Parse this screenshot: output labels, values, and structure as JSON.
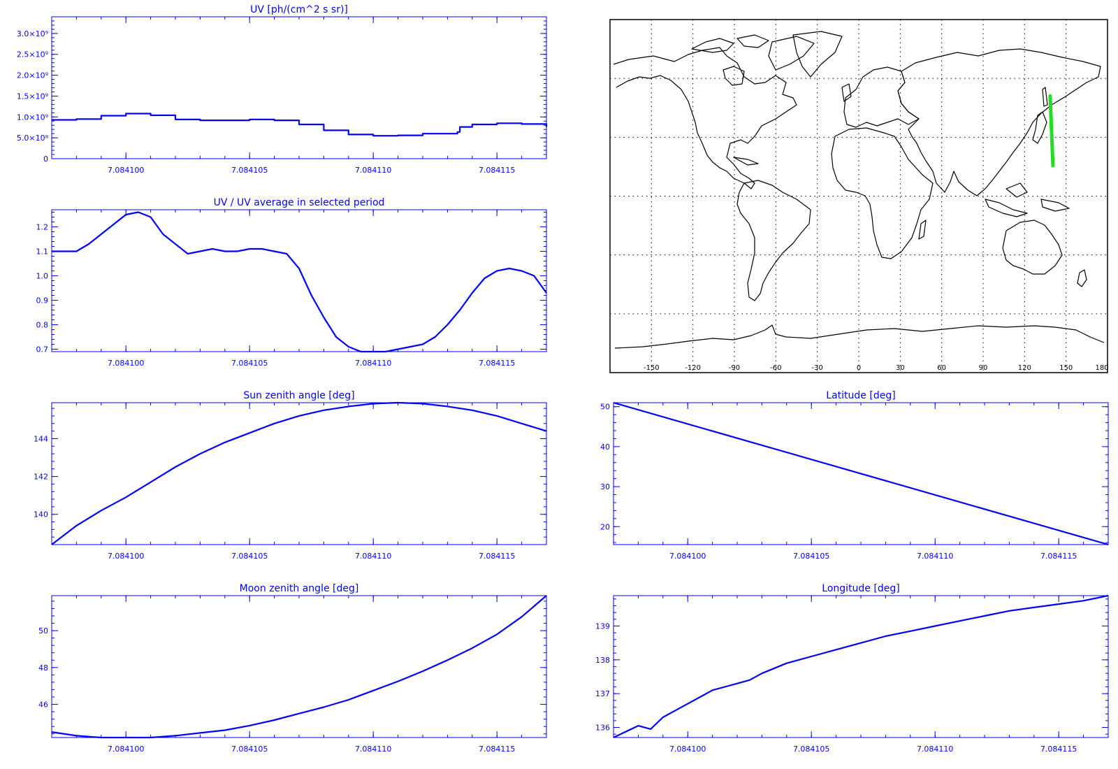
{
  "colors": {
    "plot": "#0000ff",
    "map_frame": "#000000",
    "track": "#22dd22",
    "grid": "#000000"
  },
  "chart_data": [
    {
      "type": "line",
      "title": "UV [ph/(cm^2 s sr)]",
      "xlim": [
        7.084097,
        7.084117
      ],
      "x_ticks": [
        "7.084100",
        "7.084105",
        "7.084110",
        "7.084115"
      ],
      "x_tick_values": [
        7.0841,
        7.084105,
        7.08411,
        7.084115
      ],
      "ylim": [
        0,
        3400000000
      ],
      "y_ticks": [
        "0",
        "5.0×10⁸",
        "1.0×10⁹",
        "1.5×10⁹",
        "2.0×10⁹",
        "2.5×10⁹",
        "3.0×10⁹"
      ],
      "y_tick_values": [
        0,
        500000000,
        1000000000,
        1500000000,
        2000000000,
        2500000000,
        3000000000
      ],
      "x": [
        7.084097,
        7.084098,
        7.084099,
        7.0841,
        7.084101,
        7.084102,
        7.084103,
        7.084104,
        7.084105,
        7.084106,
        7.084107,
        7.084108,
        7.084109,
        7.08411,
        7.084111,
        7.084112,
        7.0841134,
        7.0841135,
        7.084114,
        7.084115,
        7.084116,
        7.084117
      ],
      "y": [
        930000000,
        950000000,
        1030000000,
        1080000000,
        1040000000,
        940000000,
        920000000,
        920000000,
        940000000,
        920000000,
        820000000,
        680000000,
        580000000,
        550000000,
        560000000,
        600000000,
        640000000,
        760000000,
        820000000,
        850000000,
        830000000,
        760000000
      ]
    },
    {
      "type": "line",
      "title": "UV / UV average in selected period",
      "xlim": [
        7.084097,
        7.084117
      ],
      "x_ticks": [
        "7.084100",
        "7.084105",
        "7.084110",
        "7.084115"
      ],
      "x_tick_values": [
        7.0841,
        7.084105,
        7.08411,
        7.084115
      ],
      "ylim": [
        0.69,
        1.27
      ],
      "y_ticks": [
        "0.7",
        "0.8",
        "0.9",
        "1.0",
        "1.1",
        "1.2"
      ],
      "y_tick_values": [
        0.7,
        0.8,
        0.9,
        1.0,
        1.1,
        1.2
      ],
      "x": [
        7.084097,
        7.084098,
        7.0840985,
        7.084099,
        7.0840995,
        7.0841,
        7.0841005,
        7.084101,
        7.0841015,
        7.084102,
        7.0841025,
        7.084103,
        7.0841035,
        7.084104,
        7.0841045,
        7.084105,
        7.0841055,
        7.084106,
        7.0841065,
        7.084107,
        7.0841075,
        7.084108,
        7.0841085,
        7.084109,
        7.0841095,
        7.08411,
        7.0841105,
        7.084111,
        7.0841115,
        7.084112,
        7.0841125,
        7.084113,
        7.0841135,
        7.084114,
        7.0841145,
        7.084115,
        7.0841155,
        7.084116,
        7.0841165,
        7.084117
      ],
      "y": [
        1.1,
        1.1,
        1.13,
        1.17,
        1.21,
        1.25,
        1.26,
        1.24,
        1.17,
        1.13,
        1.09,
        1.1,
        1.11,
        1.1,
        1.1,
        1.11,
        1.11,
        1.1,
        1.09,
        1.03,
        0.92,
        0.83,
        0.75,
        0.71,
        0.69,
        0.69,
        0.69,
        0.7,
        0.71,
        0.72,
        0.75,
        0.8,
        0.86,
        0.93,
        0.99,
        1.02,
        1.03,
        1.02,
        1.0,
        0.93
      ]
    },
    {
      "type": "line",
      "title": "Sun zenith angle [deg]",
      "xlim": [
        7.084097,
        7.084117
      ],
      "x_ticks": [
        "7.084100",
        "7.084105",
        "7.084110",
        "7.084115"
      ],
      "x_tick_values": [
        7.0841,
        7.084105,
        7.08411,
        7.084115
      ],
      "ylim": [
        138.4,
        145.9
      ],
      "y_ticks": [
        "140",
        "142",
        "144"
      ],
      "y_tick_values": [
        140,
        142,
        144
      ],
      "x": [
        7.084097,
        7.084098,
        7.084099,
        7.0841,
        7.084101,
        7.084102,
        7.084103,
        7.084104,
        7.084105,
        7.084106,
        7.084107,
        7.084108,
        7.084109,
        7.08411,
        7.084111,
        7.084112,
        7.084113,
        7.084114,
        7.084115,
        7.084116,
        7.084117
      ],
      "y": [
        138.4,
        139.4,
        140.2,
        140.9,
        141.7,
        142.5,
        143.2,
        143.8,
        144.3,
        144.8,
        145.2,
        145.5,
        145.7,
        145.85,
        145.9,
        145.85,
        145.7,
        145.5,
        145.2,
        144.8,
        144.4
      ]
    },
    {
      "type": "line",
      "title": "Latitude [deg]",
      "xlim": [
        7.084097,
        7.084117
      ],
      "x_ticks": [
        "7.084100",
        "7.084105",
        "7.084110",
        "7.084115"
      ],
      "x_tick_values": [
        7.0841,
        7.084105,
        7.08411,
        7.084115
      ],
      "ylim": [
        15.5,
        51
      ],
      "y_ticks": [
        "20",
        "30",
        "40",
        "50"
      ],
      "y_tick_values": [
        20,
        30,
        40,
        50
      ],
      "x": [
        7.084097,
        7.084117
      ],
      "y": [
        51,
        15.5
      ]
    },
    {
      "type": "line",
      "title": "Moon zenith angle [deg]",
      "xlim": [
        7.084097,
        7.084117
      ],
      "x_ticks": [
        "7.084100",
        "7.084105",
        "7.084110",
        "7.084115"
      ],
      "x_tick_values": [
        7.0841,
        7.084105,
        7.08411,
        7.084115
      ],
      "ylim": [
        44.2,
        51.9
      ],
      "y_ticks": [
        "46",
        "48",
        "50"
      ],
      "y_tick_values": [
        46,
        48,
        50
      ],
      "x": [
        7.084097,
        7.084098,
        7.084099,
        7.0841,
        7.084101,
        7.084102,
        7.084103,
        7.084104,
        7.084105,
        7.084106,
        7.084107,
        7.084108,
        7.084109,
        7.08411,
        7.084111,
        7.084112,
        7.084113,
        7.084114,
        7.084115,
        7.084116,
        7.084117
      ],
      "y": [
        44.5,
        44.3,
        44.2,
        44.2,
        44.2,
        44.3,
        44.45,
        44.6,
        44.85,
        45.15,
        45.5,
        45.85,
        46.25,
        46.75,
        47.25,
        47.8,
        48.4,
        49.05,
        49.8,
        50.75,
        51.9
      ]
    },
    {
      "type": "line",
      "title": "Longitude [deg]",
      "xlim": [
        7.084097,
        7.084117
      ],
      "x_ticks": [
        "7.084100",
        "7.084105",
        "7.084110",
        "7.084115"
      ],
      "x_tick_values": [
        7.0841,
        7.084105,
        7.08411,
        7.084115
      ],
      "ylim": [
        135.7,
        139.9
      ],
      "y_ticks": [
        "136",
        "137",
        "138",
        "139"
      ],
      "y_tick_values": [
        136,
        137,
        138,
        139
      ],
      "x": [
        7.084097,
        7.084098,
        7.0840985,
        7.084099,
        7.0840995,
        7.0841,
        7.0841005,
        7.084101,
        7.0841015,
        7.084102,
        7.0841025,
        7.084103,
        7.084104,
        7.084105,
        7.084106,
        7.084107,
        7.084108,
        7.084109,
        7.08411,
        7.084111,
        7.084112,
        7.084113,
        7.084114,
        7.084115,
        7.084116,
        7.084117
      ],
      "y": [
        135.7,
        136.05,
        135.95,
        136.3,
        136.5,
        136.7,
        136.9,
        137.1,
        137.2,
        137.3,
        137.4,
        137.6,
        137.9,
        138.1,
        138.3,
        138.5,
        138.7,
        138.85,
        139.0,
        139.15,
        139.3,
        139.45,
        139.55,
        139.65,
        139.75,
        139.9
      ]
    }
  ],
  "map": {
    "lon_ticks": [
      "-150",
      "-120",
      "-90",
      "-60",
      "-30",
      "0",
      "30",
      "60",
      "90",
      "120",
      "150",
      "180"
    ],
    "lon_values": [
      -150,
      -120,
      -90,
      -60,
      -30,
      0,
      30,
      60,
      90,
      120,
      150,
      180
    ],
    "lat_grid": [
      -60,
      -30,
      0,
      30,
      60
    ],
    "track": {
      "lon": [
        138.5,
        140.5
      ],
      "lat": [
        51,
        15.5
      ]
    }
  }
}
